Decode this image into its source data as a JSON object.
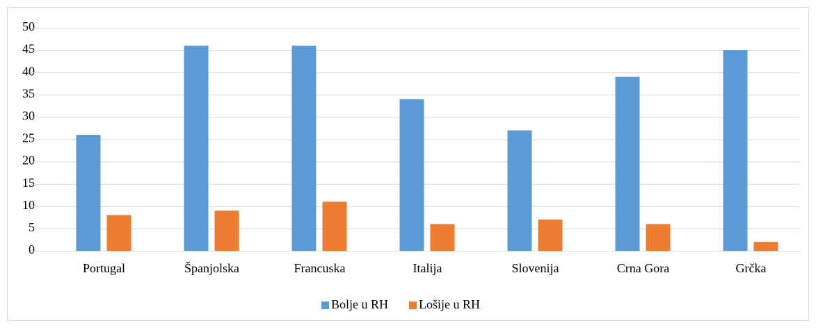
{
  "chart_data": {
    "type": "bar",
    "categories": [
      "Portugal",
      "Španjolska",
      "Francuska",
      "Italija",
      "Slovenija",
      "Crna Gora",
      "Grčka"
    ],
    "series": [
      {
        "name": "Bolje u RH",
        "color": "#5b9bd5",
        "values": [
          26,
          46,
          46,
          34,
          27,
          39,
          45
        ]
      },
      {
        "name": "Lošije u RH",
        "color": "#ed7d31",
        "values": [
          8,
          9,
          11,
          6,
          7,
          6,
          2
        ]
      }
    ],
    "ylim": [
      0,
      50
    ],
    "yticks": [
      0,
      5,
      10,
      15,
      20,
      25,
      30,
      35,
      40,
      45,
      50
    ],
    "grid": true,
    "legend": "bottom"
  }
}
